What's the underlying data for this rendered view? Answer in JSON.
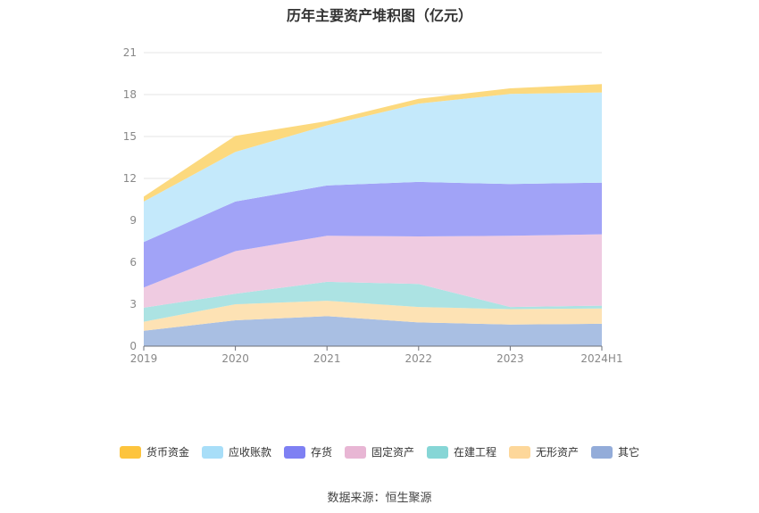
{
  "chart_data": {
    "type": "area",
    "stacked": true,
    "title": "历年主要资产堆积图（亿元）",
    "categories": [
      "2019",
      "2020",
      "2021",
      "2022",
      "2023",
      "2024H1"
    ],
    "ylim": [
      0,
      21
    ],
    "yticks": [
      0,
      3,
      6,
      9,
      12,
      15,
      18,
      21
    ],
    "xlabel": "",
    "ylabel": "",
    "grid": true,
    "legend_position": "bottom",
    "series": [
      {
        "name": "其它",
        "color": "#a9bfe3",
        "legend_color": "#93acd9",
        "values": [
          1.1,
          1.85,
          2.15,
          1.7,
          1.55,
          1.6
        ]
      },
      {
        "name": "无形资产",
        "color": "#fde2b4",
        "legend_color": "#fdd79a",
        "values": [
          0.65,
          1.15,
          1.1,
          1.1,
          1.1,
          1.1
        ]
      },
      {
        "name": "在建工程",
        "color": "#ace3e3",
        "legend_color": "#86d6d6",
        "values": [
          1.0,
          0.75,
          1.35,
          1.65,
          0.15,
          0.2
        ]
      },
      {
        "name": "固定资产",
        "color": "#efcbe1",
        "legend_color": "#e8b6d4",
        "values": [
          1.45,
          3.05,
          3.3,
          3.4,
          5.1,
          5.1
        ]
      },
      {
        "name": "存货",
        "color": "#a1a3f7",
        "legend_color": "#7e80f3",
        "values": [
          3.25,
          3.55,
          3.6,
          3.9,
          3.7,
          3.7
        ]
      },
      {
        "name": "应收账款",
        "color": "#c4e9fb",
        "legend_color": "#a8def8",
        "values": [
          2.9,
          3.55,
          4.3,
          5.6,
          6.45,
          6.45
        ]
      },
      {
        "name": "货币资金",
        "color": "#fcd97e",
        "legend_color": "#fdc43d",
        "values": [
          0.35,
          1.15,
          0.3,
          0.35,
          0.4,
          0.6
        ]
      }
    ],
    "legend_order": [
      "货币资金",
      "应收账款",
      "存货",
      "固定资产",
      "在建工程",
      "无形资产",
      "其它"
    ]
  },
  "source": "数据来源：恒生聚源"
}
